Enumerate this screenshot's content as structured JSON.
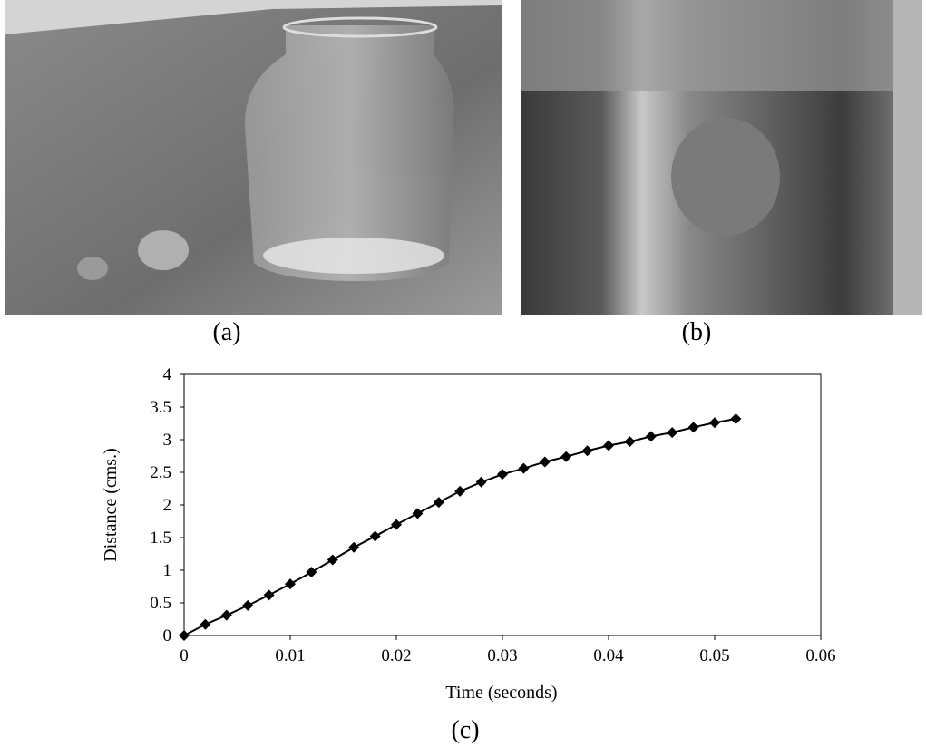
{
  "captions": {
    "a": "(a)",
    "b": "(b)",
    "c": "(c)"
  },
  "chart_data": {
    "type": "line",
    "xlabel": "Time (seconds)",
    "ylabel": "Distance (cms.)",
    "x": [
      0,
      0.002,
      0.004,
      0.006,
      0.008,
      0.01,
      0.012,
      0.014,
      0.016,
      0.018,
      0.02,
      0.022,
      0.024,
      0.026,
      0.028,
      0.03,
      0.032,
      0.034,
      0.036,
      0.038,
      0.04,
      0.042,
      0.044,
      0.046,
      0.048,
      0.05,
      0.052
    ],
    "values": [
      0,
      0.17,
      0.31,
      0.46,
      0.62,
      0.79,
      0.97,
      1.16,
      1.35,
      1.52,
      1.7,
      1.87,
      2.04,
      2.21,
      2.35,
      2.47,
      2.56,
      2.66,
      2.74,
      2.83,
      2.91,
      2.97,
      3.05,
      3.11,
      3.19,
      3.26,
      3.32
    ],
    "color": "#000000",
    "xlim": [
      0,
      0.06
    ],
    "xticks": [
      0,
      0.01,
      0.02,
      0.03,
      0.04,
      0.05,
      0.06
    ],
    "ylim": [
      0,
      4
    ],
    "yticks": [
      0,
      0.5,
      1,
      1.5,
      2,
      2.5,
      3,
      3.5,
      4
    ]
  }
}
